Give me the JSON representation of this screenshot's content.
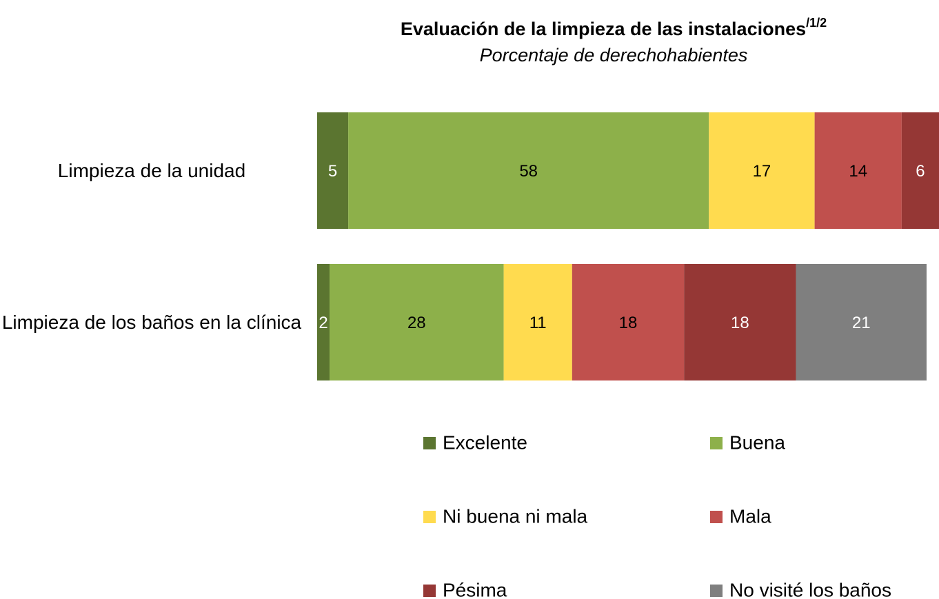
{
  "chart_data": {
    "type": "stacked_bar_horizontal",
    "title": "Evaluación de la limpieza de las instalaciones",
    "title_superscript": "/1/2",
    "subtitle": "Porcentaje de derechohabientes",
    "categories": [
      "Limpieza de la unidad",
      "Limpieza de los baños en la clínica"
    ],
    "series": [
      {
        "name": "Excelente",
        "color": "#5b7530",
        "label_color": "#ffffff",
        "values": [
          5,
          2
        ]
      },
      {
        "name": "Buena",
        "color": "#8db04a",
        "label_color": "#000000",
        "values": [
          58,
          28
        ]
      },
      {
        "name": "Ni buena ni mala",
        "color": "#ffdb4f",
        "label_color": "#000000",
        "values": [
          17,
          11
        ]
      },
      {
        "name": "Mala",
        "color": "#c0504d",
        "label_color": "#000000",
        "values": [
          14,
          18
        ]
      },
      {
        "name": "Pésima",
        "color": "#953735",
        "label_color": "#ffffff",
        "values": [
          6,
          18
        ]
      },
      {
        "name": "No visité los baños",
        "color": "#7f7f7f",
        "label_color": "#ffffff",
        "values": [
          null,
          21
        ]
      }
    ],
    "xlim": [
      0,
      100
    ],
    "legend": "bottom"
  }
}
